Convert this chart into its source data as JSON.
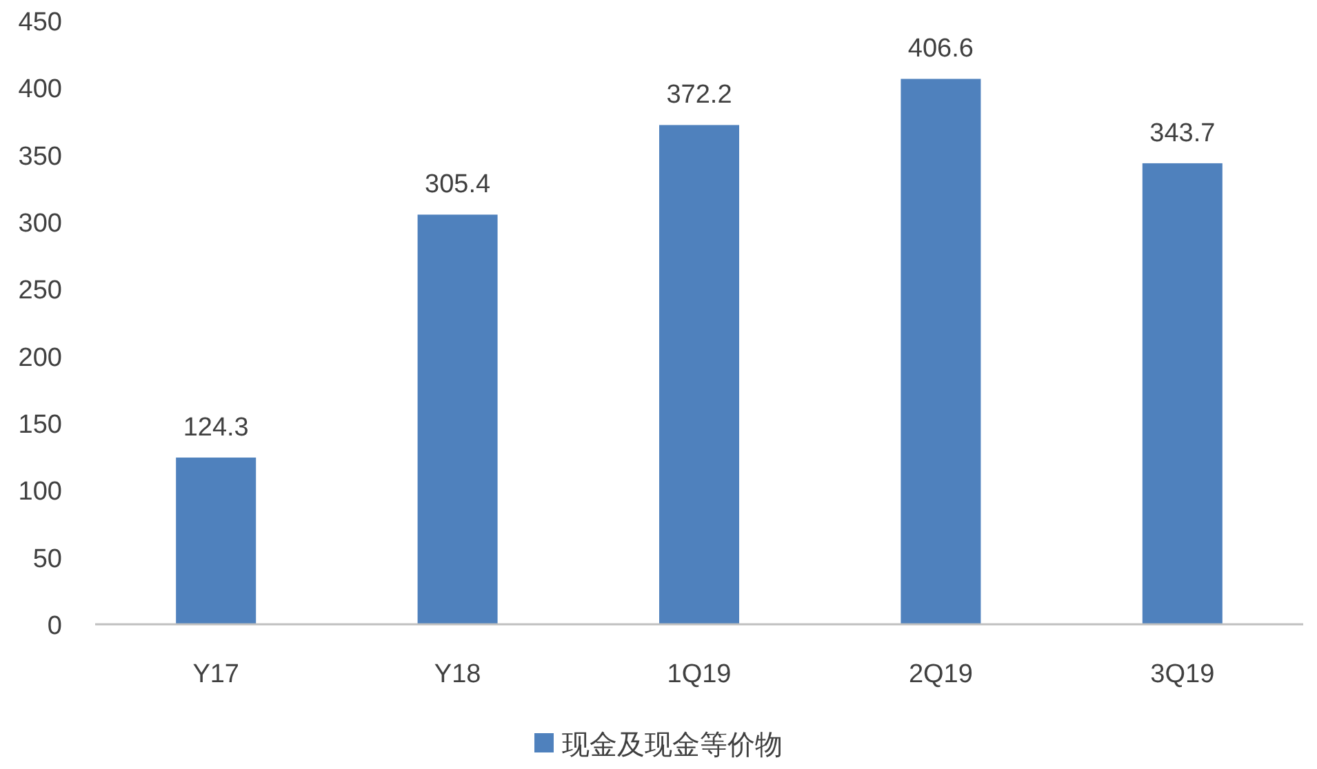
{
  "chart_data": {
    "type": "bar",
    "categories": [
      "Y17",
      "Y18",
      "1Q19",
      "2Q19",
      "3Q19"
    ],
    "series": [
      {
        "name": "现金及现金等价物",
        "color": "#4f81bd",
        "values": [
          124.3,
          305.4,
          372.2,
          406.6,
          343.7
        ]
      }
    ],
    "ylim": [
      0,
      450
    ],
    "yticks": [
      0,
      50,
      100,
      150,
      200,
      250,
      300,
      350,
      400,
      450
    ],
    "data_labels": true,
    "legend": "bottom",
    "grid": false
  }
}
